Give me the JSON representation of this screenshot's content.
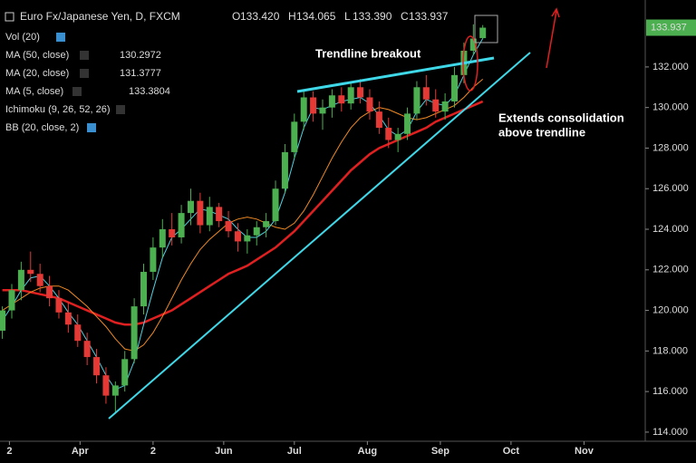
{
  "header": {
    "symbol": "Euro Fx/Japanese Yen, D, FXCM",
    "ohlc": [
      {
        "prefix": "O",
        "value": "133.420"
      },
      {
        "prefix": "H",
        "value": "134.065"
      },
      {
        "prefix": "L",
        "value": "133.390"
      },
      {
        "prefix": "C",
        "value": "133.937"
      }
    ]
  },
  "chart_data": {
    "type": "candlestick",
    "xlim": [
      -3,
      271
    ],
    "ylim": [
      113.55,
      135.3
    ],
    "xticks": [
      {
        "value": 1,
        "label": "2"
      },
      {
        "value": 31,
        "label": "Apr"
      },
      {
        "value": 62,
        "label": "2"
      },
      {
        "value": 92,
        "label": "Jun"
      },
      {
        "value": 122,
        "label": "Jul"
      },
      {
        "value": 153,
        "label": "Aug"
      },
      {
        "value": 184,
        "label": "Sep"
      },
      {
        "value": 214,
        "label": "Oct"
      },
      {
        "value": 245,
        "label": "Nov"
      }
    ],
    "yticks": [
      {
        "value": 114,
        "label": "114.000"
      },
      {
        "value": 116,
        "label": "116.000"
      },
      {
        "value": 118,
        "label": "118.000"
      },
      {
        "value": 120,
        "label": "120.000"
      },
      {
        "value": 122,
        "label": "122.000"
      },
      {
        "value": 124,
        "label": "124.000"
      },
      {
        "value": 126,
        "label": "126.000"
      },
      {
        "value": 128,
        "label": "128.000"
      },
      {
        "value": 130,
        "label": "130.000"
      },
      {
        "value": 132,
        "label": "132.000"
      }
    ],
    "up_color": "#4caf50",
    "down_color": "#e53935",
    "candles": {
      "x": [
        -2,
        2,
        6,
        10,
        14,
        18,
        22,
        26,
        30,
        34,
        38,
        42,
        46,
        50,
        54,
        58,
        62,
        66,
        70,
        74,
        78,
        82,
        86,
        90,
        94,
        98,
        102,
        106,
        110,
        114,
        118,
        122,
        126,
        130,
        134,
        138,
        142,
        146,
        150,
        154,
        158,
        162,
        166,
        170,
        174,
        178,
        182,
        186,
        190,
        194,
        198,
        202
      ],
      "open": [
        119.0,
        120.0,
        121.0,
        122.0,
        121.8,
        121.2,
        120.6,
        119.9,
        119.3,
        118.5,
        117.7,
        116.8,
        115.8,
        116.3,
        117.6,
        120.2,
        121.9,
        123.1,
        124.0,
        123.6,
        124.8,
        125.4,
        124.2,
        125.1,
        124.4,
        123.9,
        123.4,
        123.7,
        124.1,
        124.4,
        126.0,
        127.8,
        129.3,
        130.5,
        129.7,
        130.0,
        130.6,
        130.2,
        131.0,
        130.5,
        129.8,
        129.0,
        128.4,
        128.7,
        129.7,
        131.0,
        130.4,
        129.8,
        130.3,
        131.6,
        132.8,
        133.42
      ],
      "high": [
        120.2,
        121.3,
        122.4,
        122.9,
        122.3,
        121.7,
        121.0,
        120.4,
        119.8,
        118.9,
        118.1,
        117.2,
        116.5,
        118.0,
        120.6,
        122.3,
        123.6,
        124.5,
        124.8,
        125.2,
        126.0,
        125.8,
        125.6,
        125.3,
        124.9,
        124.3,
        124.0,
        124.4,
        124.8,
        126.4,
        128.2,
        129.7,
        130.9,
        130.8,
        130.4,
        130.9,
        131.0,
        131.3,
        131.4,
        130.9,
        130.3,
        129.5,
        129.0,
        130.0,
        131.3,
        131.6,
        130.9,
        130.7,
        132.0,
        133.2,
        134.1,
        134.065
      ],
      "low": [
        118.6,
        119.6,
        120.5,
        121.4,
        120.9,
        120.2,
        119.6,
        118.9,
        118.2,
        117.3,
        116.4,
        115.4,
        115.0,
        116.0,
        117.4,
        119.8,
        121.5,
        122.6,
        123.2,
        123.3,
        124.2,
        123.8,
        123.9,
        124.1,
        123.6,
        122.9,
        122.8,
        123.2,
        123.6,
        124.2,
        125.8,
        127.5,
        128.9,
        129.3,
        128.9,
        129.5,
        129.8,
        129.9,
        130.2,
        129.4,
        128.7,
        128.0,
        127.8,
        128.4,
        129.4,
        130.1,
        129.5,
        129.4,
        130.0,
        131.2,
        132.6,
        133.39
      ],
      "close": [
        120.0,
        121.0,
        122.0,
        121.8,
        121.2,
        120.6,
        119.9,
        119.3,
        118.5,
        117.7,
        116.8,
        115.8,
        116.3,
        117.6,
        120.2,
        121.9,
        123.1,
        124.0,
        123.6,
        124.8,
        125.4,
        124.2,
        125.1,
        124.4,
        123.9,
        123.4,
        123.7,
        124.1,
        124.4,
        126.0,
        127.8,
        129.3,
        130.5,
        129.7,
        130.0,
        130.6,
        130.2,
        131.0,
        130.5,
        129.8,
        129.0,
        128.4,
        128.7,
        129.7,
        131.0,
        130.4,
        129.8,
        130.3,
        131.6,
        132.8,
        133.4,
        133.937
      ]
    },
    "series": [
      {
        "name": "MA (50, close)",
        "color": "#e02020",
        "width": 2.5,
        "last_label": "130.2972",
        "values": [
          121.0,
          121.0,
          121.0,
          120.9,
          120.8,
          120.7,
          120.6,
          120.4,
          120.2,
          120.0,
          119.8,
          119.6,
          119.4,
          119.3,
          119.3,
          119.4,
          119.6,
          119.8,
          120.0,
          120.3,
          120.6,
          120.9,
          121.2,
          121.5,
          121.8,
          122.0,
          122.2,
          122.5,
          122.8,
          123.1,
          123.5,
          123.9,
          124.4,
          124.9,
          125.4,
          125.9,
          126.4,
          126.9,
          127.3,
          127.7,
          128.0,
          128.2,
          128.4,
          128.6,
          128.8,
          129.0,
          129.3,
          129.5,
          129.7,
          129.9,
          130.1,
          130.3
        ]
      },
      {
        "name": "MA (20, close)",
        "color": "#f08a24",
        "width": 1,
        "last_label": "131.3777",
        "values": [
          120.0,
          120.3,
          120.6,
          120.9,
          121.1,
          121.2,
          121.2,
          121.0,
          120.6,
          120.2,
          119.7,
          119.2,
          118.6,
          118.1,
          118.0,
          118.3,
          118.9,
          119.7,
          120.6,
          121.5,
          122.3,
          123.0,
          123.5,
          123.9,
          124.3,
          124.5,
          124.6,
          124.5,
          124.3,
          124.1,
          124.0,
          124.3,
          124.9,
          125.7,
          126.6,
          127.5,
          128.3,
          129.0,
          129.5,
          129.8,
          130.0,
          129.9,
          129.7,
          129.5,
          129.4,
          129.5,
          129.7,
          129.9,
          130.1,
          130.5,
          131.0,
          131.4
        ]
      },
      {
        "name": "MA (5, close)",
        "color": "#4fd0e0",
        "width": 1,
        "last_label": "133.3804",
        "values": [
          119.5,
          120.2,
          121.0,
          121.6,
          121.7,
          121.2,
          120.6,
          119.9,
          119.3,
          118.5,
          117.7,
          116.8,
          116.1,
          116.3,
          117.5,
          119.3,
          121.0,
          122.6,
          123.6,
          124.0,
          124.5,
          125.0,
          124.9,
          124.7,
          124.5,
          124.0,
          123.6,
          123.6,
          123.9,
          124.5,
          125.8,
          127.5,
          129.0,
          130.0,
          129.9,
          130.1,
          130.3,
          130.4,
          130.5,
          130.2,
          129.6,
          128.9,
          128.6,
          128.9,
          129.8,
          130.4,
          130.2,
          130.1,
          130.6,
          131.6,
          132.6,
          133.4
        ]
      }
    ],
    "indicators_off": [
      "Vol (20)",
      "Ichimoku (9, 26, 52, 26)",
      "BB (20, close, 2)"
    ],
    "price_label": {
      "value": 133.937,
      "label": "133.937"
    },
    "annotations": [
      "Trendline breakout",
      "Extends consolidation",
      "above trendline"
    ]
  }
}
